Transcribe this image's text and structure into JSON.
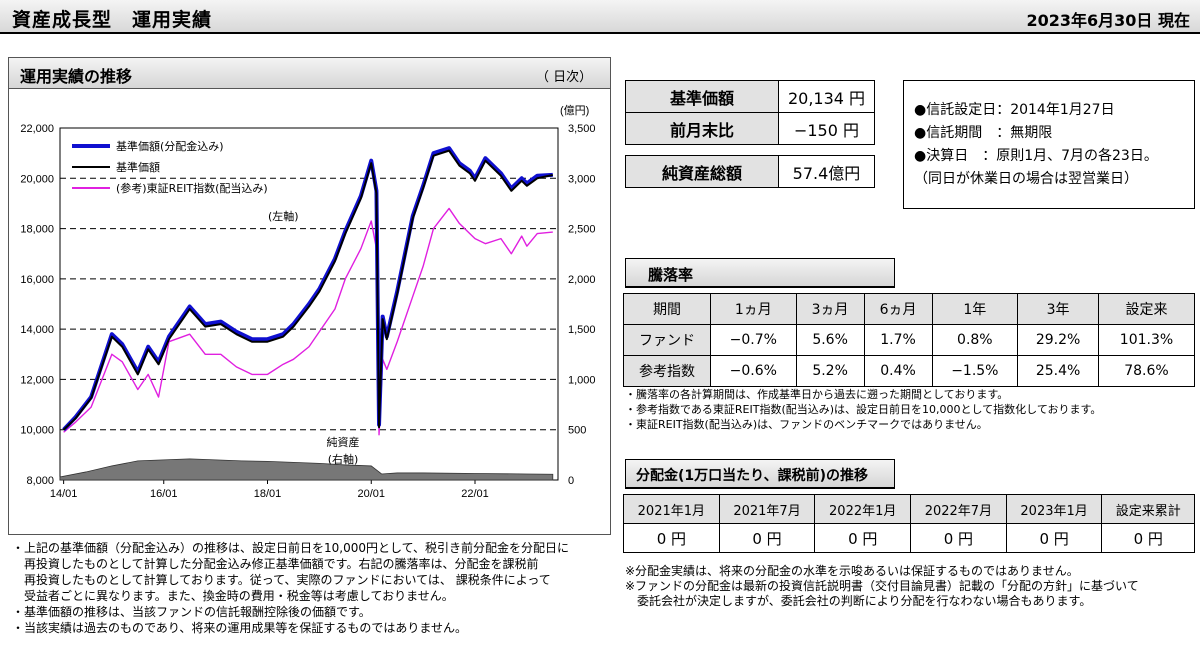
{
  "header": {
    "title": "資産成長型　運用実績",
    "date": "2023年6月30日 現在"
  },
  "chart_box": {
    "title": "運用実績の推移",
    "unit": "（ 日次）"
  },
  "chart_data": {
    "type": "line",
    "title": "運用実績の推移",
    "y_left": {
      "range": [
        8000,
        22000
      ],
      "ticks": [
        "8,000",
        "10,000",
        "12,000",
        "14,000",
        "16,000",
        "18,000",
        "20,000",
        "22,000"
      ]
    },
    "y_right": {
      "unit": "(億円)",
      "range": [
        0,
        3500
      ],
      "ticks": [
        "0",
        "500",
        "1,000",
        "1,500",
        "2,000",
        "2,500",
        "3,000",
        "3,500"
      ]
    },
    "x_ticks": [
      "14/01",
      "16/01",
      "18/01",
      "20/01",
      "22/01"
    ],
    "annotations": {
      "left_axis": "(左軸)",
      "net_assets_1": "純資産",
      "net_assets_2": "(右軸)"
    },
    "legend": [
      "基準価額(分配金込み)",
      "基準価額",
      "(参考)東証REIT指数(配当込み)"
    ],
    "series": [
      {
        "name": "基準価額(分配金込み)",
        "color": "#1010d0",
        "x": [
          2014.07,
          2014.3,
          2014.6,
          2015.0,
          2015.2,
          2015.5,
          2015.7,
          2015.9,
          2016.1,
          2016.5,
          2016.8,
          2017.1,
          2017.4,
          2017.7,
          2018.0,
          2018.3,
          2018.5,
          2018.8,
          2019.0,
          2019.3,
          2019.5,
          2019.8,
          2020.0,
          2020.1,
          2020.15,
          2020.22,
          2020.3,
          2020.5,
          2020.8,
          2021.0,
          2021.2,
          2021.5,
          2021.7,
          2021.9,
          2022.0,
          2022.2,
          2022.5,
          2022.7,
          2022.9,
          2023.0,
          2023.2,
          2023.5
        ],
        "y": [
          10000,
          10500,
          11300,
          13800,
          13400,
          12300,
          13300,
          12700,
          13700,
          14900,
          14200,
          14300,
          13900,
          13600,
          13600,
          13800,
          14200,
          15000,
          15600,
          16800,
          17900,
          19300,
          20700,
          19500,
          10200,
          14500,
          13700,
          15500,
          18500,
          19700,
          21000,
          21200,
          20600,
          20300,
          20000,
          20800,
          20200,
          19600,
          20000,
          19800,
          20100,
          20134
        ]
      },
      {
        "name": "基準価額",
        "color": "#000000",
        "x": [
          2014.07,
          2014.3,
          2014.6,
          2015.0,
          2015.2,
          2015.5,
          2015.7,
          2015.9,
          2016.1,
          2016.5,
          2016.8,
          2017.1,
          2017.4,
          2017.7,
          2018.0,
          2018.3,
          2018.5,
          2018.8,
          2019.0,
          2019.3,
          2019.5,
          2019.8,
          2020.0,
          2020.1,
          2020.15,
          2020.22,
          2020.3,
          2020.5,
          2020.8,
          2021.0,
          2021.2,
          2021.5,
          2021.7,
          2021.9,
          2022.0,
          2022.2,
          2022.5,
          2022.7,
          2022.9,
          2023.0,
          2023.2,
          2023.5
        ],
        "y": [
          10000,
          10450,
          11250,
          13700,
          13300,
          12200,
          13200,
          12600,
          13600,
          14800,
          14100,
          14200,
          13800,
          13500,
          13500,
          13700,
          14100,
          14900,
          15500,
          16700,
          17800,
          19200,
          20600,
          19400,
          10100,
          14400,
          13600,
          15400,
          18400,
          19600,
          20900,
          21100,
          20500,
          20200,
          19900,
          20700,
          20100,
          19500,
          19900,
          19700,
          20000,
          20134
        ]
      },
      {
        "name": "(参考)東証REIT指数(配当込み)",
        "color": "#e020e0",
        "x": [
          2014.07,
          2014.3,
          2014.6,
          2015.0,
          2015.2,
          2015.5,
          2015.7,
          2015.9,
          2016.1,
          2016.5,
          2016.8,
          2017.1,
          2017.4,
          2017.7,
          2018.0,
          2018.3,
          2018.5,
          2018.8,
          2019.0,
          2019.3,
          2019.5,
          2019.8,
          2020.0,
          2020.1,
          2020.15,
          2020.22,
          2020.3,
          2020.5,
          2020.8,
          2021.0,
          2021.2,
          2021.5,
          2021.7,
          2021.9,
          2022.0,
          2022.2,
          2022.5,
          2022.7,
          2022.9,
          2023.0,
          2023.2,
          2023.5
        ],
        "y": [
          9900,
          10300,
          10900,
          13000,
          12700,
          11600,
          12200,
          11300,
          13500,
          13800,
          13000,
          13000,
          12500,
          12200,
          12200,
          12600,
          12800,
          13300,
          13900,
          14800,
          16000,
          17200,
          18300,
          17200,
          9800,
          12800,
          12400,
          13500,
          15300,
          16500,
          18000,
          18800,
          18200,
          17800,
          17600,
          17400,
          17600,
          17000,
          17700,
          17300,
          17800,
          17860
        ]
      }
    ],
    "net_assets": {
      "name": "純資産",
      "x": [
        2014.0,
        2014.5,
        2015.0,
        2015.5,
        2016.0,
        2016.5,
        2017.0,
        2017.5,
        2018.0,
        2018.5,
        2019.0,
        2019.5,
        2020.0,
        2020.2,
        2020.5,
        2021.0,
        2022.0,
        2023.0,
        2023.5
      ],
      "y": [
        30,
        80,
        140,
        190,
        200,
        210,
        200,
        190,
        185,
        175,
        165,
        150,
        140,
        60,
        70,
        70,
        65,
        60,
        57
      ]
    }
  },
  "summary": {
    "nav_label": "基準価額",
    "nav_value": "20,134 円",
    "change_label": "前月末比",
    "change_value": "−150 円",
    "assets_label": "純資産総額",
    "assets_value": "57.4億円"
  },
  "info": {
    "line1": "●信託設定日：2014年1月27日",
    "line2": "●信託期間　：無期限",
    "line3": "●決算日　：原則1月、7月の各23日。",
    "line4": "（同日が休業日の場合は翌営業日）"
  },
  "performance": {
    "title": "騰落率",
    "headers": [
      "期間",
      "1ヵ月",
      "3ヵ月",
      "6ヵ月",
      "1年",
      "3年",
      "設定来"
    ],
    "rows": [
      {
        "label": "ファンド",
        "values": [
          "−0.7%",
          "5.6%",
          "1.7%",
          "0.8%",
          "29.2%",
          "101.3%"
        ]
      },
      {
        "label": "参考指数",
        "values": [
          "−0.6%",
          "5.2%",
          "0.4%",
          "−1.5%",
          "25.4%",
          "78.6%"
        ]
      }
    ],
    "notes": [
      "・騰落率の各計算期間は、作成基準日から過去に遡った期間としております。",
      "・参考指数である東証REIT指数(配当込み)は、設定日前日を10,000として指数化しております。",
      "・東証REIT指数(配当込み)は、ファンドのベンチマークではありません。"
    ]
  },
  "dividends": {
    "title": "分配金(1万口当たり、課税前)の推移",
    "headers": [
      "2021年1月",
      "2021年7月",
      "2022年1月",
      "2022年7月",
      "2023年1月",
      "設定来累計"
    ],
    "values": [
      "0 円",
      "0 円",
      "0 円",
      "0 円",
      "0 円",
      "0 円"
    ],
    "notes": [
      "※分配金実績は、将来の分配金の水準を示唆あるいは保証するものではありません。",
      "※ファンドの分配金は最新の投資信託説明書（交付目論見書）記載の「分配の方針」に基づいて",
      "　委託会社が決定しますが、委託会社の判断により分配を行なわない場合もあります。"
    ]
  },
  "chart_notes": [
    "・上記の基準価額（分配金込み）の推移は、設定日前日を10,000円として、税引き前分配金を分配日に",
    "　再投資したものとして計算した分配金込み修正基準価額です。右記の騰落率は、分配金を課税前",
    "　再投資したものとして計算しております。従って、実際のファンドにおいては、 課税条件によって",
    "　受益者ごとに異なります。また、換金時の費用・税金等は考慮しておりません。",
    "・基準価額の推移は、当該ファンドの信託報酬控除後の価額です。",
    "・当該実績は過去のものであり、将来の運用成果等を保証するものではありません。"
  ]
}
